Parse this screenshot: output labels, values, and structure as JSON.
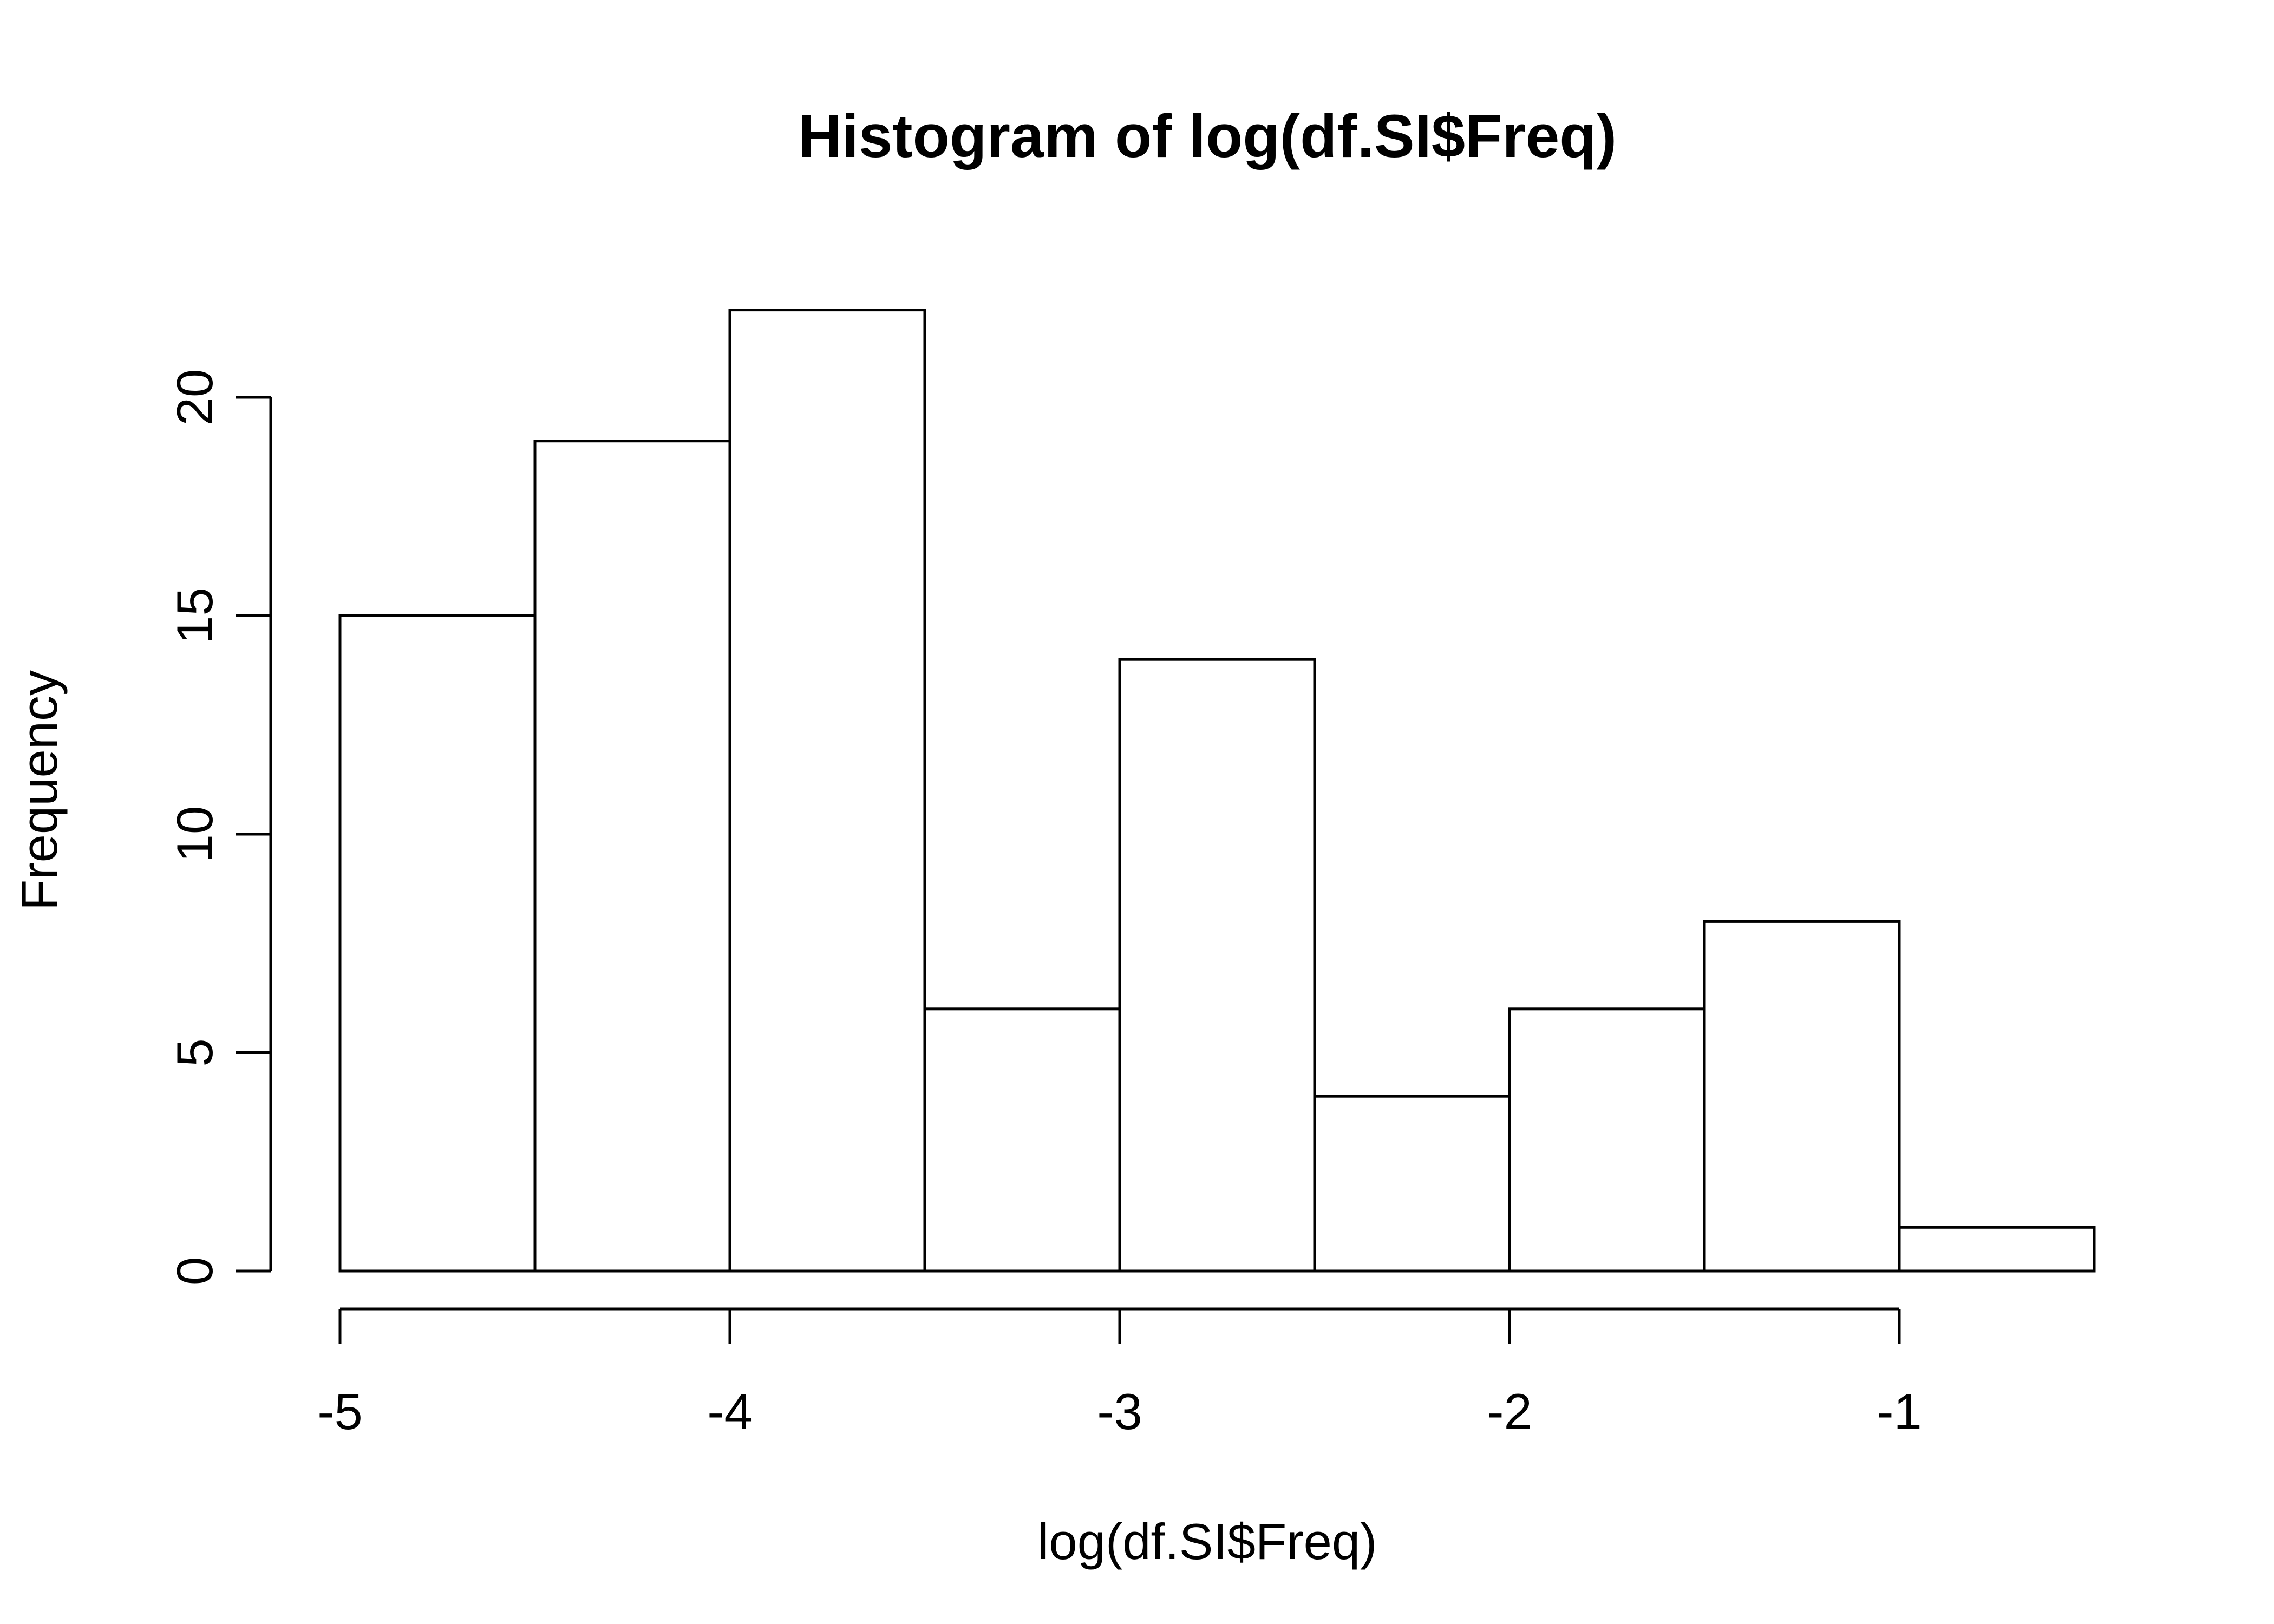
{
  "chart_data": {
    "type": "bar",
    "title": "Histogram of log(df.SI$Freq)",
    "xlabel": "log(df.SI$Freq)",
    "ylabel": "Frequency",
    "bins": [
      {
        "start": -5.0,
        "end": -4.5,
        "count": 15
      },
      {
        "start": -4.5,
        "end": -4.0,
        "count": 19
      },
      {
        "start": -4.0,
        "end": -3.5,
        "count": 22
      },
      {
        "start": -3.5,
        "end": -3.0,
        "count": 6
      },
      {
        "start": -3.0,
        "end": -2.5,
        "count": 14
      },
      {
        "start": -2.5,
        "end": -2.0,
        "count": 4
      },
      {
        "start": -2.0,
        "end": -1.5,
        "count": 6
      },
      {
        "start": -1.5,
        "end": -1.0,
        "count": 8
      },
      {
        "start": -1.0,
        "end": -0.5,
        "count": 1
      }
    ],
    "x_ticks": [
      -5,
      -4,
      -3,
      -2,
      -1
    ],
    "y_ticks": [
      0,
      5,
      10,
      15,
      20
    ],
    "xlim": [
      -5,
      -1
    ],
    "ylim": [
      0,
      20
    ],
    "grid": false
  }
}
